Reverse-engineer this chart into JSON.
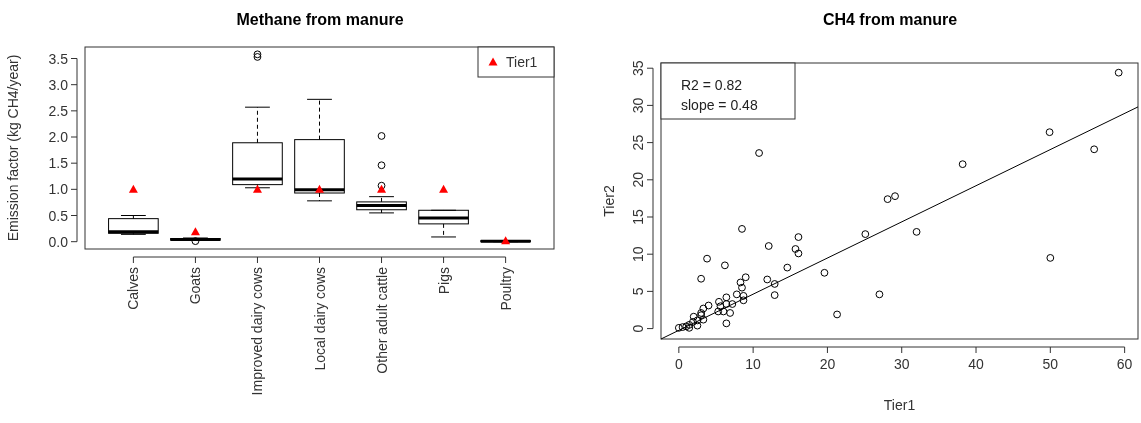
{
  "chart_data": [
    {
      "type": "box",
      "title": "Methane from manure",
      "ylabel": "Emission factor (kg CH4/year)",
      "categories": [
        "Calves",
        "Goats",
        "Improved dairy cows",
        "Local dairy cows",
        "Other adult cattle",
        "Pigs",
        "Poultry"
      ],
      "ylim": [
        -0.14,
        3.72
      ],
      "yticks": [
        {
          "value": 0,
          "label": "0.0"
        },
        0.5,
        {
          "value": 1,
          "label": "1.0"
        },
        1.5,
        {
          "value": 2,
          "label": "2.0"
        },
        2.5,
        {
          "value": 3,
          "label": "3.0"
        },
        3.5
      ],
      "legend": "top right",
      "series": [
        {
          "color": "#000000",
          "boxes": [
            {
              "low": 0.14,
              "q1": 0.16,
              "median": 0.19,
              "q3": 0.44,
              "high": 0.5
            },
            {
              "low": 0.03,
              "q1": 0.03,
              "median": 0.04,
              "q3": 0.06,
              "high": 0.07,
              "outliers": [
                0.01
              ]
            },
            {
              "low": 1.03,
              "q1": 1.09,
              "median": 1.2,
              "q3": 1.89,
              "high": 2.57,
              "outliers": [
                3.53,
                3.58
              ]
            },
            {
              "low": 0.78,
              "q1": 0.93,
              "median": 0.99,
              "q3": 1.95,
              "high": 2.72
            },
            {
              "low": 0.55,
              "q1": 0.61,
              "median": 0.69,
              "q3": 0.76,
              "high": 0.86,
              "outliers": [
                1.07,
                1.46,
                2.02
              ]
            },
            {
              "low": 0.09,
              "q1": 0.34,
              "median": 0.45,
              "q3": 0.6,
              "high": 0.6
            },
            {
              "low": 0,
              "q1": 0,
              "median": 0.01,
              "q3": 0.02,
              "high": 0.02
            }
          ]
        },
        {
          "type": "scatter",
          "name": "Tier1",
          "color": "#ff0000",
          "marker": "triangle",
          "x": [
            "Calves",
            "Goats",
            "Improved dairy cows",
            "Local dairy cows",
            "Other adult cattle",
            "Pigs",
            "Poultry"
          ],
          "values": [
            1.0,
            0.19,
            1.0,
            1.0,
            1.0,
            1.0,
            0.02
          ]
        }
      ]
    },
    {
      "type": "scatter",
      "title": "CH4 from manure",
      "xlabel": "Tier1",
      "ylabel": "Tier2",
      "xlim": [
        -2.4,
        61.8
      ],
      "ylim": [
        -1.4,
        35.7
      ],
      "xticks": [
        0,
        10,
        20,
        30,
        40,
        50,
        60
      ],
      "yticks": [
        0,
        5,
        10,
        15,
        20,
        25,
        30,
        35
      ],
      "annotations": [
        "R2 =  0.82",
        "slope = 0.48"
      ],
      "series": [
        {
          "color": "#000000",
          "marker": "circle",
          "x": [
            59.2,
            49.9,
            55.9,
            10.8,
            38.2,
            28.1,
            29.1,
            32.0,
            8.5,
            25.1,
            50.0,
            16.1,
            15.7,
            16.1,
            12.1,
            3.8,
            6.2,
            14.6,
            19.6,
            3.0,
            11.9,
            9.0,
            8.3,
            8.5,
            12.9,
            27.0,
            12.9,
            7.8,
            8.7,
            8.7,
            6.4,
            5.4,
            7.2,
            6.4,
            5.6,
            4.0,
            3.3,
            5.3,
            6.0,
            6.9,
            21.3,
            6.4,
            3.0,
            3.3,
            3.0,
            2.0,
            2.5,
            1.9,
            1.4,
            1.0,
            0.5,
            0.0,
            1.4,
            2.5
          ],
          "values": [
            34.4,
            26.4,
            24.1,
            23.6,
            22.1,
            17.4,
            17.8,
            13.0,
            13.4,
            12.7,
            9.5,
            12.3,
            10.7,
            10.1,
            11.1,
            9.4,
            8.5,
            8.2,
            7.5,
            6.7,
            6.6,
            6.9,
            6.2,
            5.5,
            6.0,
            4.6,
            4.5,
            4.6,
            4.4,
            3.8,
            4.2,
            3.6,
            3.3,
            3.3,
            3.0,
            3.1,
            2.7,
            2.3,
            2.3,
            2.1,
            1.9,
            0.7,
            2.1,
            1.2,
            1.8,
            1.6,
            0.4,
            0.9,
            0.5,
            0.3,
            0.2,
            0.1,
            0.1,
            1.1
          ]
        },
        {
          "type": "line",
          "color": "#000000",
          "x": [
            -2.4,
            61.8
          ],
          "values": [
            -1.4,
            29.8
          ]
        }
      ]
    }
  ]
}
